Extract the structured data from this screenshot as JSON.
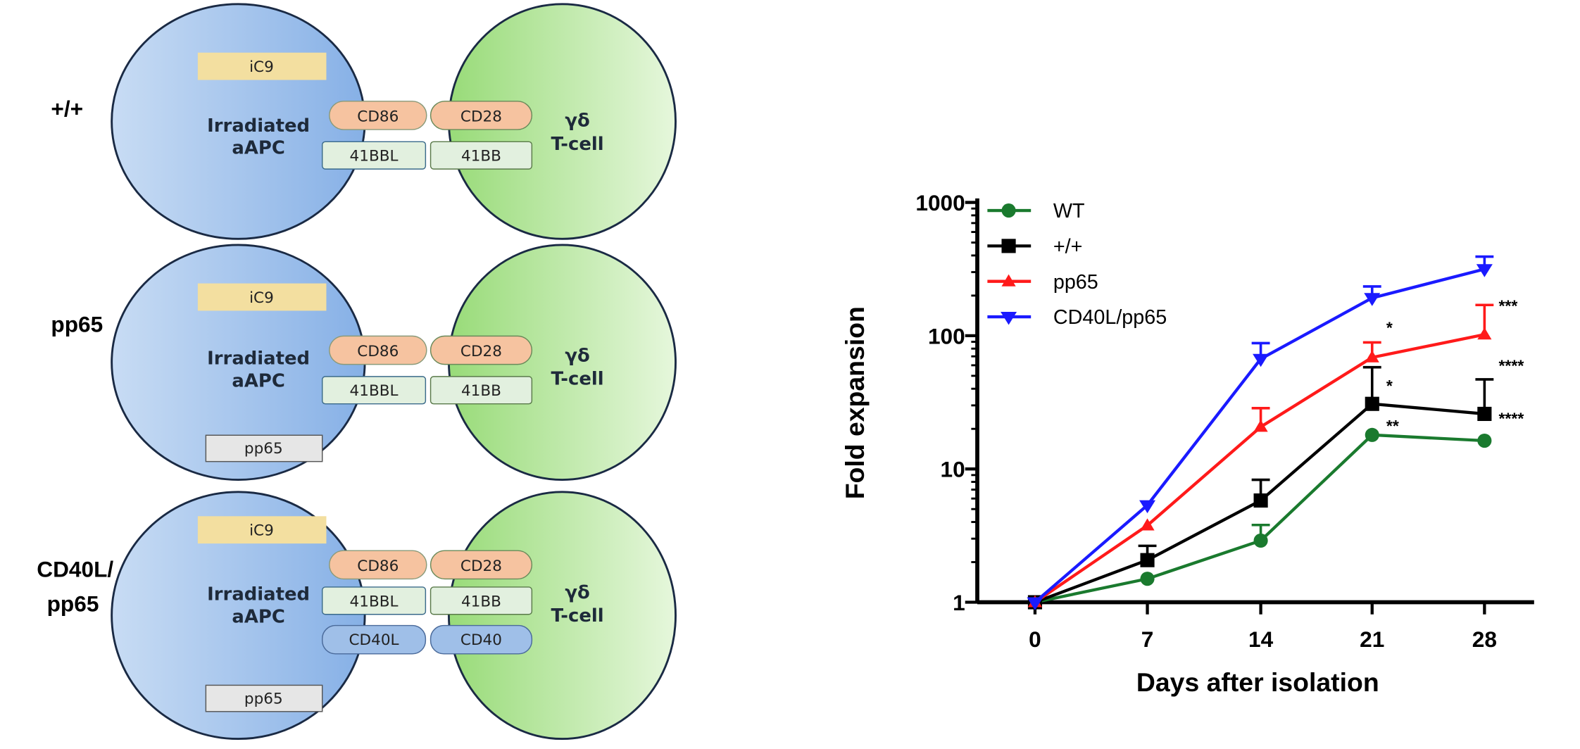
{
  "diagram": {
    "panels": [
      {
        "label": "+/+",
        "apc": [
          "Irradiated",
          "aAPC"
        ],
        "tcell": [
          "γδ",
          "T-cell"
        ],
        "ic9": "iC9",
        "cd86": "CD86",
        "cd28": "CD28",
        "bbl": "41BBL",
        "bb": "41BB"
      },
      {
        "label": "pp65",
        "apc": [
          "Irradiated",
          "aAPC"
        ],
        "tcell": [
          "γδ",
          "T-cell"
        ],
        "ic9": "iC9",
        "cd86": "CD86",
        "cd28": "CD28",
        "bbl": "41BBL",
        "bb": "41BB",
        "pp65": "pp65"
      },
      {
        "label_lines": [
          "CD40L/",
          "pp65"
        ],
        "apc": [
          "Irradiated",
          "aAPC"
        ],
        "tcell": [
          "γδ",
          "T-cell"
        ],
        "ic9": "iC9",
        "cd86": "CD86",
        "cd28": "CD28",
        "bbl": "41BBL",
        "bb": "41BB",
        "cd40l": "CD40L",
        "cd40": "CD40",
        "pp65": "pp65"
      }
    ],
    "colors": {
      "apc": "#a9c8ee",
      "tcell": "#bfe9a6",
      "ic9": "#f3dfa0",
      "costim": "#f6c3a0",
      "bb": "#e2f0df",
      "cd40": "#9fbfe8",
      "pp65": "#e6e6e6"
    }
  },
  "chart_data": {
    "type": "line",
    "xlabel": "Days after isolation",
    "ylabel": "Fold expansion",
    "x": [
      0,
      7,
      14,
      21,
      28
    ],
    "xticks": [
      "0",
      "7",
      "14",
      "21",
      "28"
    ],
    "yscale": "log",
    "ylim": [
      1,
      1000
    ],
    "yticks": [
      "1",
      "10",
      "100",
      "1000"
    ],
    "grid": false,
    "legend": "top-left",
    "series": [
      {
        "name": "WT",
        "color": "#1a7a2e",
        "marker": "circle",
        "values": [
          1,
          1.5,
          2.9,
          18,
          16.3
        ],
        "err_upper": [
          1,
          1.5,
          3.8,
          18,
          16.3
        ]
      },
      {
        "name": "+/+",
        "color": "#000000",
        "marker": "square",
        "values": [
          1,
          2.07,
          5.8,
          30.8,
          25.9
        ],
        "err_upper": [
          1,
          2.65,
          8.3,
          58,
          47
        ]
      },
      {
        "name": "pp65",
        "color": "#ff1a1a",
        "marker": "triangle-up",
        "values": [
          1,
          3.77,
          20.7,
          68.7,
          102
        ],
        "err_upper": [
          1,
          3.77,
          28.6,
          89,
          170
        ]
      },
      {
        "name": "CD40L/pp65",
        "color": "#1a1aff",
        "marker": "triangle-down",
        "values": [
          1,
          5.35,
          67,
          192,
          316
        ],
        "err_upper": [
          1,
          5.35,
          88,
          234,
          392
        ]
      }
    ],
    "annotations": [
      {
        "text": "*",
        "x": 21,
        "y": 120
      },
      {
        "text": "*",
        "x": 21,
        "y": 44
      },
      {
        "text": "**",
        "x": 21,
        "y": 22
      },
      {
        "text": "***",
        "x": 28,
        "y": 175
      },
      {
        "text": "****",
        "x": 28,
        "y": 62
      },
      {
        "text": "****",
        "x": 28,
        "y": 25
      }
    ]
  }
}
